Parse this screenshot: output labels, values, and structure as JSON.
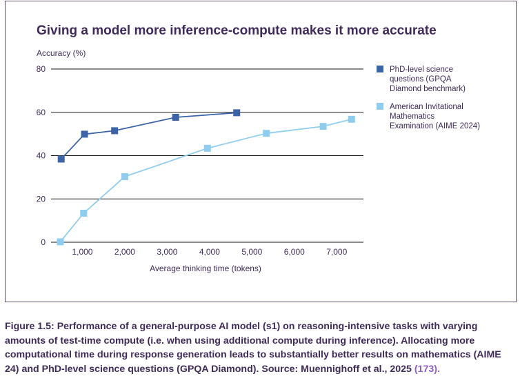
{
  "figure": {
    "label": "Figure 1.5:",
    "caption": "Performance of a general-purpose AI model (s1) on reasoning-intensive tasks with varying amounts of test-time compute (i.e. when using additional compute during inference). Allocating more computational time during response generation leads to substantially better results on mathematics (AIME 24) and PhD-level science questions (GPQA Diamond). Source: Muennighoff et al., 2025",
    "reference": "(173).",
    "frame_color": "#5b4a6b",
    "text_color": "#3f2a5a",
    "link_color": "#8b5cc7"
  },
  "chart_data": {
    "type": "line",
    "title": "Giving a model more inference-compute makes it more accurate",
    "xlabel": "Average thinking time (tokens)",
    "ylabel": "Accuracy (%)",
    "xlim": [
      0,
      7500
    ],
    "ylim": [
      0,
      80
    ],
    "xticks": [
      1000,
      2000,
      3000,
      4000,
      5000,
      6000,
      7000
    ],
    "xtick_labels": [
      "1,000",
      "2,000",
      "3,000",
      "4,000",
      "5,000",
      "6,000",
      "7,000"
    ],
    "yticks": [
      0,
      20,
      40,
      60,
      80
    ],
    "ytick_labels": [
      "0",
      "20",
      "40",
      "60",
      "80"
    ],
    "grid": true,
    "legend_position": "right",
    "series": [
      {
        "name": "PhD-level science questions (GPQA Diamond benchmark)",
        "legend_lines": [
          "PhD-level science",
          "questions (GPQA",
          "Diamond benchmark)"
        ],
        "color": "#3b63a8",
        "x": [
          500,
          1050,
          1760,
          3200,
          4640
        ],
        "y": [
          38.4,
          49.9,
          51.5,
          57.7,
          59.8
        ]
      },
      {
        "name": "American Invitational Mathematics Examination (AIME 2024)",
        "legend_lines": [
          "American Invitational",
          "Mathematics",
          "Examination (AIME 2024)"
        ],
        "color": "#8fcdf0",
        "x": [
          480,
          1030,
          2000,
          3950,
          5340,
          6680,
          7350
        ],
        "y": [
          0.2,
          13.4,
          30.3,
          43.4,
          50.3,
          53.5,
          56.8
        ]
      }
    ]
  }
}
